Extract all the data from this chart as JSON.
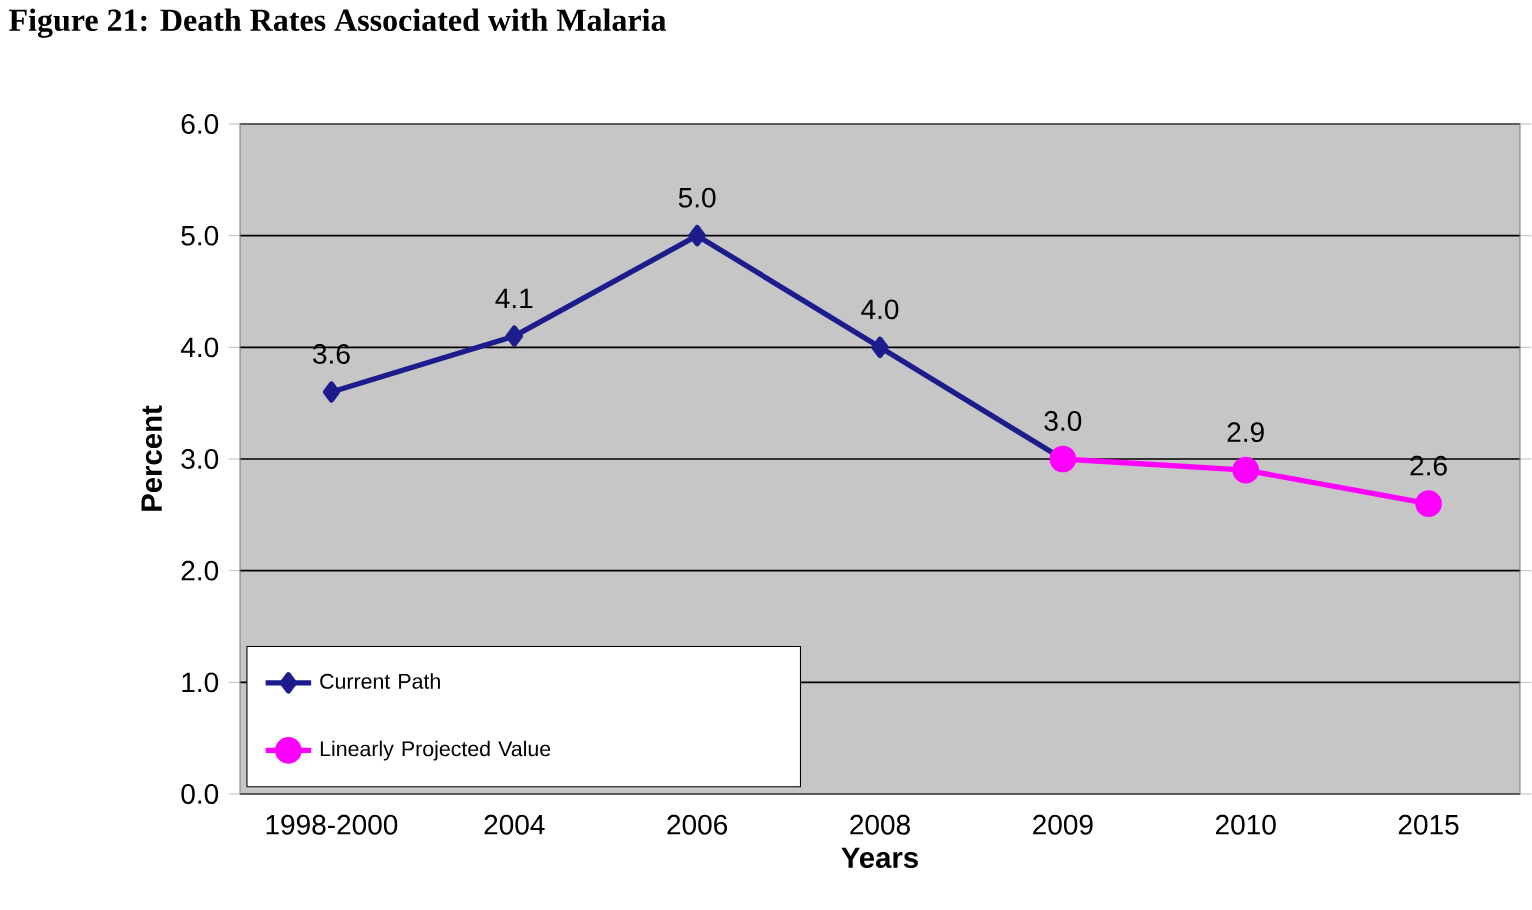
{
  "chart_data": {
    "type": "line",
    "title": "Figure 21: Death Rates Associated with Malaria",
    "categories": [
      "1998-2000",
      "2004",
      "2006",
      "2008",
      "2009",
      "2010",
      "2015"
    ],
    "series": [
      {
        "name": "Current Path",
        "color": "#1c1c8c",
        "marker": "diamond",
        "values": [
          3.6,
          4.1,
          5.0,
          4.0,
          3.0,
          null,
          null
        ],
        "value_labels": [
          "3.6",
          "4.1",
          "5.0",
          "4.0",
          "3.0",
          null,
          null
        ]
      },
      {
        "name": "Linearly Projected Value",
        "color": "#ff00ff",
        "marker": "circle",
        "values": [
          null,
          null,
          null,
          null,
          3.0,
          2.9,
          2.6
        ],
        "value_labels": [
          null,
          null,
          null,
          null,
          null,
          "2.9",
          "2.6"
        ]
      }
    ],
    "xlabel": "Years",
    "ylabel": "Percent",
    "ylim": [
      0,
      6
    ],
    "yticks": [
      {
        "value": 0,
        "label": "0.0"
      },
      {
        "value": 1,
        "label": "1.0"
      },
      {
        "value": 2,
        "label": "2.0"
      },
      {
        "value": 3,
        "label": "3.0"
      },
      {
        "value": 4,
        "label": "4.0"
      },
      {
        "value": 5,
        "label": "5.0"
      },
      {
        "value": 6,
        "label": "6.0"
      }
    ],
    "grid": "y",
    "legend": "bottom left",
    "line_style": "solid"
  }
}
